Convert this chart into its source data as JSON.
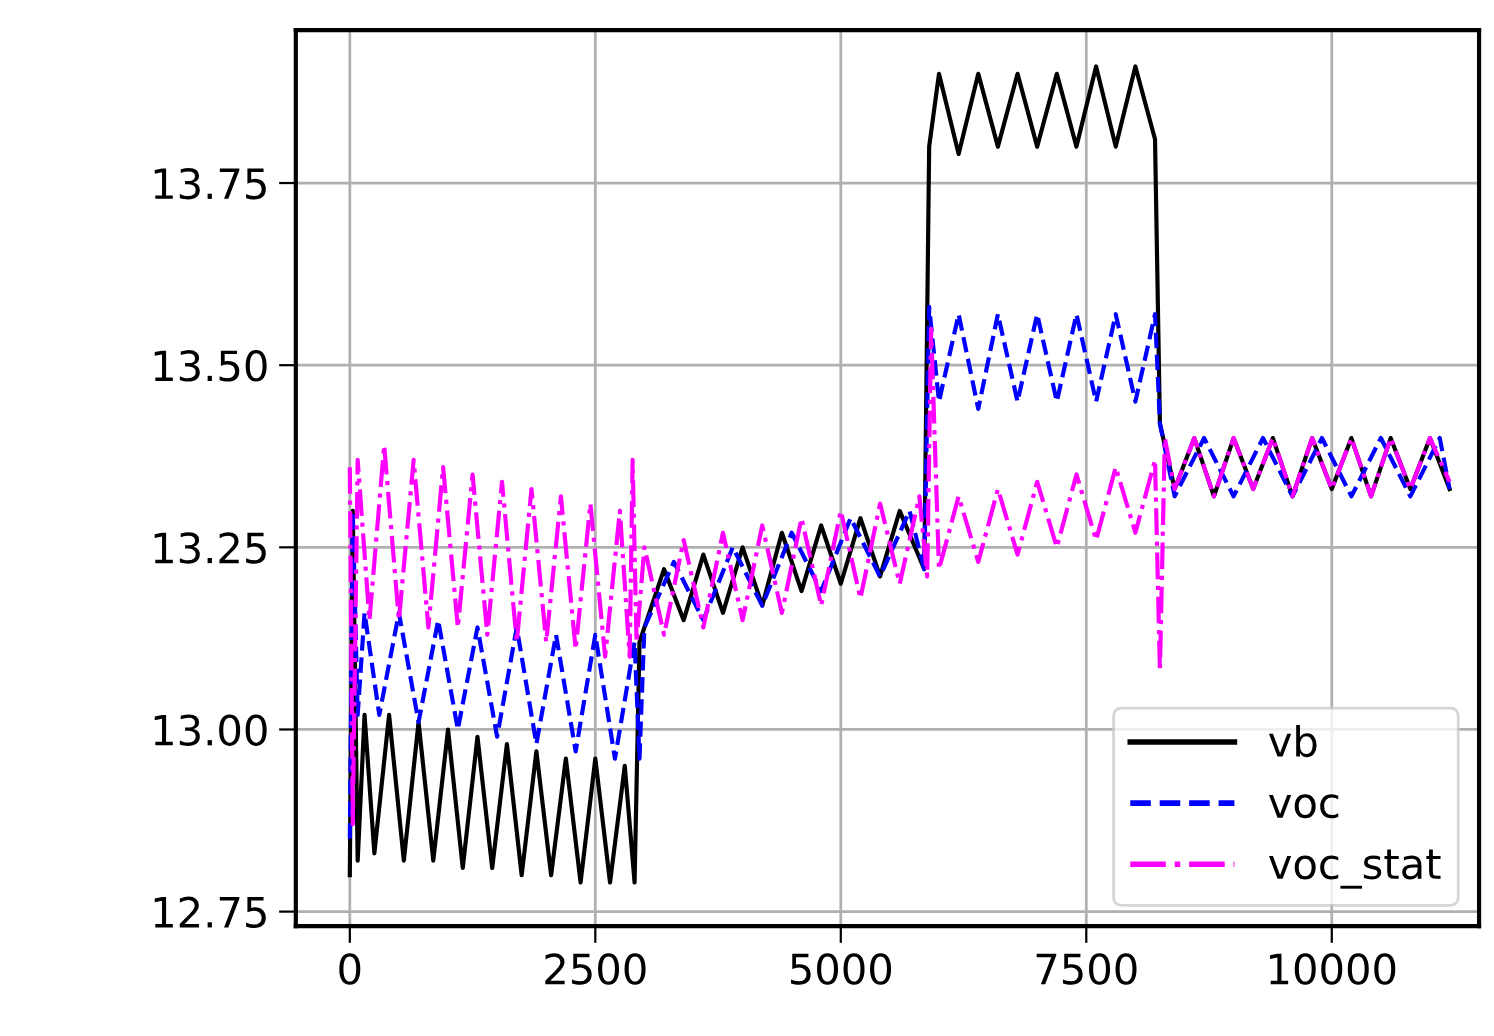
{
  "chart_data": {
    "type": "line",
    "series": [
      {
        "name": "vb",
        "color": "#000000",
        "line_style": "solid",
        "x": [
          0,
          30,
          80,
          150,
          250,
          400,
          550,
          700,
          850,
          1000,
          1150,
          1300,
          1450,
          1600,
          1750,
          1900,
          2050,
          2200,
          2350,
          2500,
          2650,
          2800,
          2900,
          2950,
          3000,
          3200,
          3400,
          3600,
          3800,
          4000,
          4200,
          4400,
          4600,
          4800,
          5000,
          5200,
          5400,
          5600,
          5850,
          5900,
          6000,
          6200,
          6400,
          6600,
          6800,
          7000,
          7200,
          7400,
          7600,
          7800,
          8000,
          8200,
          8250,
          8400,
          8600,
          8800,
          9000,
          9200,
          9400,
          9600,
          9800,
          10000,
          10200,
          10400,
          10600,
          10800,
          11000,
          11200
        ],
        "values": [
          12.8,
          13.3,
          12.82,
          13.02,
          12.83,
          13.02,
          12.82,
          13.01,
          12.82,
          13.0,
          12.81,
          12.99,
          12.81,
          12.98,
          12.8,
          12.97,
          12.8,
          12.96,
          12.79,
          12.96,
          12.79,
          12.95,
          12.79,
          13.12,
          13.14,
          13.22,
          13.15,
          13.24,
          13.16,
          13.25,
          13.17,
          13.27,
          13.19,
          13.28,
          13.2,
          13.29,
          13.21,
          13.3,
          13.22,
          13.8,
          13.9,
          13.79,
          13.9,
          13.8,
          13.9,
          13.8,
          13.9,
          13.8,
          13.91,
          13.8,
          13.91,
          13.81,
          13.42,
          13.33,
          13.4,
          13.32,
          13.4,
          13.33,
          13.4,
          13.32,
          13.4,
          13.33,
          13.4,
          13.32,
          13.4,
          13.33,
          13.4,
          13.33
        ]
      },
      {
        "name": "voc",
        "color": "#0000ff",
        "line_style": "dashed",
        "x": [
          0,
          30,
          80,
          150,
          300,
          500,
          700,
          900,
          1100,
          1300,
          1500,
          1700,
          1900,
          2100,
          2300,
          2500,
          2700,
          2900,
          2950,
          3000,
          3300,
          3600,
          3900,
          4200,
          4500,
          4800,
          5100,
          5400,
          5700,
          5850,
          5900,
          6000,
          6200,
          6400,
          6600,
          6800,
          7000,
          7200,
          7400,
          7600,
          7800,
          8000,
          8200,
          8250,
          8400,
          8700,
          9000,
          9300,
          9600,
          9900,
          10200,
          10500,
          10800,
          11100,
          11200
        ],
        "values": [
          12.85,
          13.3,
          13.02,
          13.16,
          13.02,
          13.16,
          13.01,
          13.15,
          13.0,
          13.14,
          12.99,
          13.14,
          12.98,
          13.13,
          12.97,
          13.13,
          12.96,
          13.12,
          12.96,
          13.14,
          13.23,
          13.15,
          13.25,
          13.17,
          13.27,
          13.19,
          13.29,
          13.21,
          13.3,
          13.22,
          13.58,
          13.45,
          13.57,
          13.44,
          13.57,
          13.45,
          13.57,
          13.45,
          13.57,
          13.45,
          13.57,
          13.45,
          13.57,
          13.42,
          13.32,
          13.4,
          13.32,
          13.4,
          13.32,
          13.4,
          13.32,
          13.4,
          13.32,
          13.4,
          13.33
        ]
      },
      {
        "name": "voc_stat",
        "color": "#ff00ff",
        "line_style": "dashdot",
        "x": [
          0,
          30,
          80,
          200,
          350,
          500,
          650,
          800,
          950,
          1100,
          1250,
          1400,
          1550,
          1700,
          1850,
          2000,
          2150,
          2300,
          2450,
          2600,
          2750,
          2850,
          2880,
          2920,
          3000,
          3200,
          3400,
          3600,
          3800,
          4000,
          4200,
          4400,
          4600,
          4800,
          5000,
          5200,
          5400,
          5600,
          5800,
          5880,
          5920,
          6000,
          6200,
          6400,
          6600,
          6800,
          7000,
          7200,
          7400,
          7600,
          7800,
          8000,
          8200,
          8250,
          8300,
          8400,
          8600,
          8800,
          9000,
          9200,
          9400,
          9600,
          9800,
          10000,
          10200,
          10400,
          10600,
          10800,
          11000,
          11200
        ],
        "values": [
          13.36,
          12.87,
          13.37,
          13.15,
          13.39,
          13.15,
          13.37,
          13.14,
          13.36,
          13.14,
          13.35,
          13.13,
          13.34,
          13.12,
          13.33,
          13.12,
          13.32,
          13.11,
          13.31,
          13.1,
          13.3,
          13.1,
          13.37,
          13.12,
          13.25,
          13.13,
          13.26,
          13.14,
          13.27,
          13.15,
          13.28,
          13.16,
          13.29,
          13.17,
          13.3,
          13.18,
          13.31,
          13.2,
          13.32,
          13.21,
          13.55,
          13.22,
          13.32,
          13.23,
          13.33,
          13.24,
          13.34,
          13.25,
          13.35,
          13.26,
          13.36,
          13.27,
          13.37,
          13.08,
          13.4,
          13.33,
          13.4,
          13.32,
          13.4,
          13.33,
          13.4,
          13.32,
          13.4,
          13.33,
          13.4,
          13.32,
          13.4,
          13.33,
          13.4,
          13.34
        ]
      }
    ],
    "xlim": [
      -550,
      11500
    ],
    "ylim": [
      12.73,
      13.96
    ],
    "xticks": [
      0,
      2500,
      5000,
      7500,
      10000
    ],
    "yticks": [
      12.75,
      {
        "value": 13.0,
        "label": "13.00"
      },
      13.25,
      {
        "value": 13.5,
        "label": "13.50"
      },
      13.75
    ],
    "grid": true,
    "legend": "lower right"
  }
}
